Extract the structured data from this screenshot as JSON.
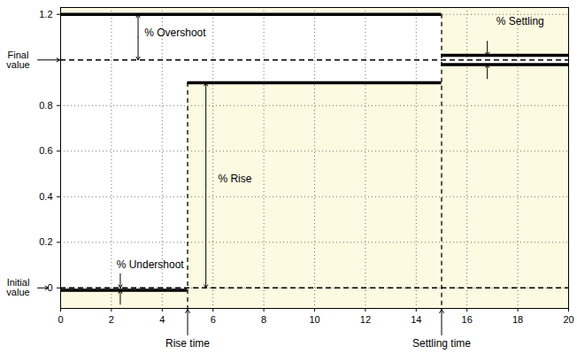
{
  "chart_data": {
    "type": "step_bounds",
    "xlim": [
      0,
      20
    ],
    "ylim": [
      -0.09,
      1.23
    ],
    "xticks": [
      0,
      2,
      4,
      6,
      8,
      10,
      12,
      14,
      16,
      18,
      20
    ],
    "yticks": [
      0,
      0.2,
      0.4,
      0.6,
      0.8,
      1.2
    ],
    "grid": true,
    "color": "#000000",
    "shading": {
      "color": "#fcfae1"
    },
    "upper_bound": [
      {
        "x": [
          0,
          15
        ],
        "value": 1.2
      },
      {
        "x": [
          15,
          20
        ],
        "value": 1.02
      }
    ],
    "lower_bound": [
      {
        "x": [
          0,
          5
        ],
        "value": -0.01
      },
      {
        "x": [
          5,
          15
        ],
        "value": 0.9
      },
      {
        "x": [
          15,
          20
        ],
        "value": 0.98
      }
    ],
    "reference_lines": [
      {
        "label": "Final value",
        "value": 1
      },
      {
        "label": "Initial value",
        "value": 0
      }
    ],
    "time_markers": [
      {
        "label": "Rise time",
        "value": 5
      },
      {
        "label": "Settling time",
        "value": 15
      }
    ],
    "annotations": [
      {
        "text": "% Overshoot",
        "from": 1,
        "to": 1.2,
        "marker": "both"
      },
      {
        "text": "% Settling",
        "from": 0.98,
        "to": 1.02,
        "marker": "inward"
      },
      {
        "text": "% Rise",
        "from": 0,
        "to": 0.9,
        "marker": "both"
      },
      {
        "text": "% Undershoot",
        "from": -0.01,
        "to": 0,
        "marker": "inward"
      }
    ]
  }
}
